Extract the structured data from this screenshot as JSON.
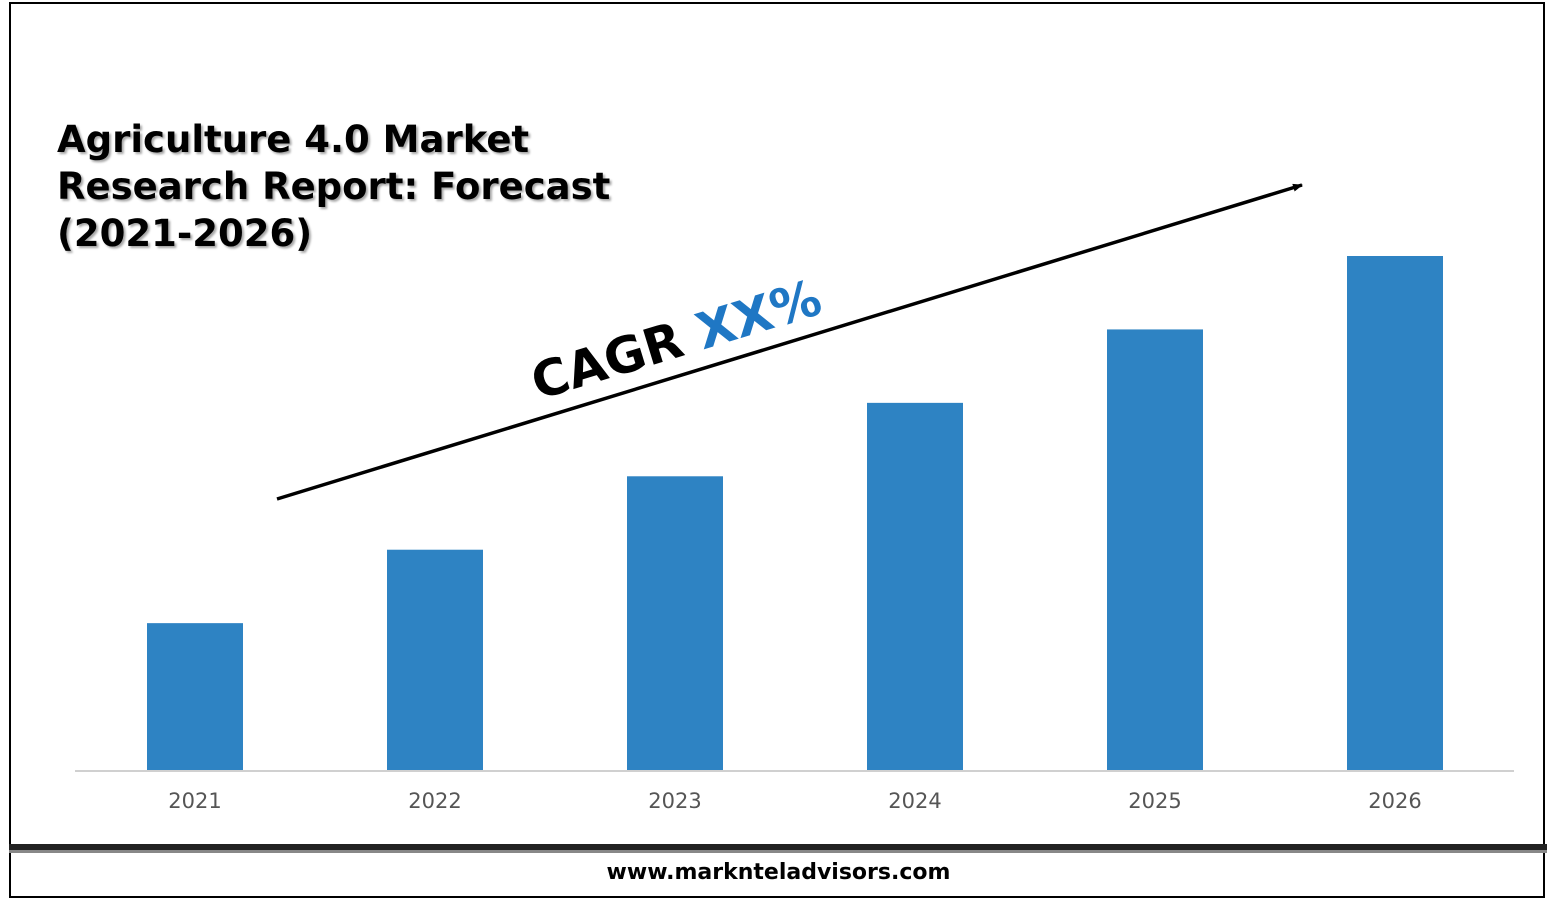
{
  "chart_data": {
    "type": "bar",
    "title": "Agriculture 4.0 Market Research Report: Forecast (2021-2026)",
    "title_lines": [
      "Agriculture 4.0 Market",
      "Research Report: Forecast",
      "(2021-2026)"
    ],
    "categories": [
      "2021",
      "2022",
      "2023",
      "2024",
      "2025",
      "2026"
    ],
    "values": [
      1,
      1.5,
      2,
      2.5,
      3,
      3.5
    ],
    "xlabel": "",
    "ylabel": "",
    "ylim": [
      0,
      3.5
    ],
    "grid": false,
    "bar_color": "#2E83C3",
    "annotation": {
      "prefix": "CAGR ",
      "value": "XX%",
      "prefix_color": "#000000",
      "value_color": "#1F77C4"
    }
  },
  "footer": {
    "url": "www.marknteladvisors.com"
  }
}
